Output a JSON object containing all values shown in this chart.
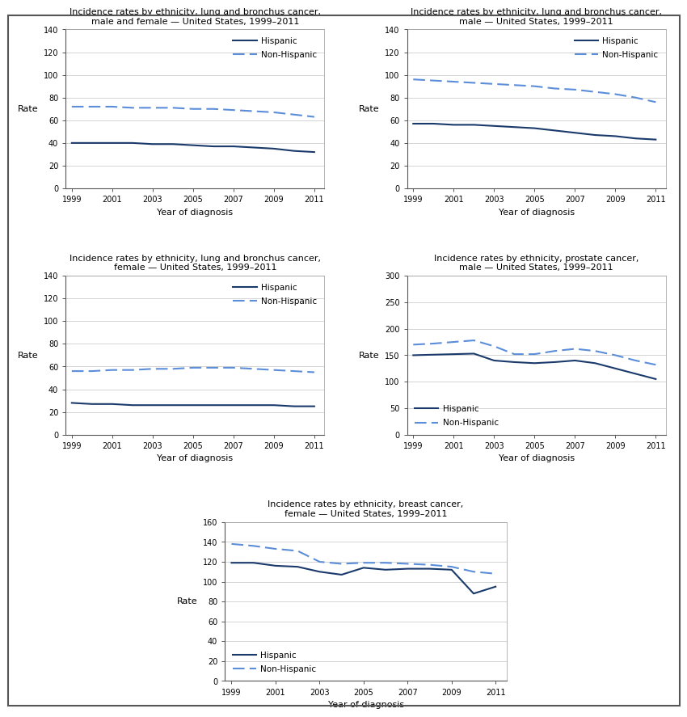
{
  "years": [
    1999,
    2000,
    2001,
    2002,
    2003,
    2004,
    2005,
    2006,
    2007,
    2008,
    2009,
    2010,
    2011
  ],
  "plots": [
    {
      "title": "Incidence rates by ethnicity, lung and bronchus cancer,\nmale and female — United States, 1999–2011",
      "ylim": [
        0,
        140
      ],
      "yticks": [
        0,
        20,
        40,
        60,
        80,
        100,
        120,
        140
      ],
      "hispanic": [
        40,
        40,
        40,
        40,
        39,
        39,
        38,
        37,
        37,
        36,
        35,
        33,
        32
      ],
      "non_hispanic": [
        72,
        72,
        72,
        71,
        71,
        71,
        70,
        70,
        69,
        68,
        67,
        65,
        63
      ],
      "legend_loc": "upper right"
    },
    {
      "title": "Incidence rates by ethnicity, lung and bronchus cancer,\nmale — United States, 1999–2011",
      "ylim": [
        0,
        140
      ],
      "yticks": [
        0,
        20,
        40,
        60,
        80,
        100,
        120,
        140
      ],
      "hispanic": [
        57,
        57,
        56,
        56,
        55,
        54,
        53,
        51,
        49,
        47,
        46,
        44,
        43
      ],
      "non_hispanic": [
        96,
        95,
        94,
        93,
        92,
        91,
        90,
        88,
        87,
        85,
        83,
        80,
        76
      ],
      "legend_loc": "upper right"
    },
    {
      "title": "Incidence rates by ethnicity, lung and bronchus cancer,\nfemale — United States, 1999–2011",
      "ylim": [
        0,
        140
      ],
      "yticks": [
        0,
        20,
        40,
        60,
        80,
        100,
        120,
        140
      ],
      "hispanic": [
        28,
        27,
        27,
        26,
        26,
        26,
        26,
        26,
        26,
        26,
        26,
        25,
        25
      ],
      "non_hispanic": [
        56,
        56,
        57,
        57,
        58,
        58,
        59,
        59,
        59,
        58,
        57,
        56,
        55
      ],
      "legend_loc": "upper right"
    },
    {
      "title": "Incidence rates by ethnicity, prostate cancer,\nmale — United States, 1999–2011",
      "ylim": [
        0,
        300
      ],
      "yticks": [
        0,
        50,
        100,
        150,
        200,
        250,
        300
      ],
      "hispanic": [
        150,
        151,
        152,
        153,
        140,
        137,
        135,
        137,
        140,
        135,
        125,
        115,
        105
      ],
      "non_hispanic": [
        170,
        172,
        175,
        178,
        167,
        152,
        152,
        158,
        162,
        158,
        150,
        140,
        132
      ],
      "legend_loc": "lower left"
    },
    {
      "title": "Incidence rates by ethnicity, breast cancer,\nfemale — United States, 1999–2011",
      "ylim": [
        0,
        160
      ],
      "yticks": [
        0,
        20,
        40,
        60,
        80,
        100,
        120,
        140,
        160
      ],
      "hispanic": [
        119,
        119,
        116,
        115,
        110,
        107,
        114,
        112,
        113,
        113,
        112,
        88,
        95
      ],
      "non_hispanic": [
        138,
        136,
        133,
        131,
        120,
        118,
        119,
        119,
        118,
        117,
        115,
        110,
        108
      ],
      "legend_loc": "lower left"
    }
  ],
  "hispanic_color": "#1a3a6b",
  "non_hispanic_color": "#5b8dd9",
  "line_width": 1.5,
  "xlabel": "Year of diagnosis",
  "ylabel": "Rate",
  "xticks": [
    1999,
    2001,
    2003,
    2005,
    2007,
    2009,
    2011
  ],
  "border_color": "#333333"
}
